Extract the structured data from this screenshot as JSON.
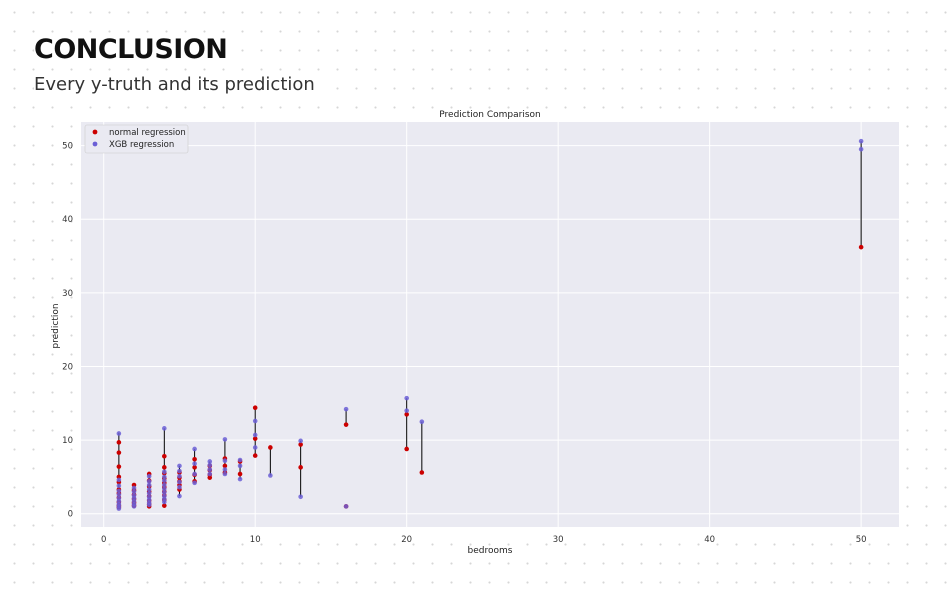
{
  "slide": {
    "title": "CONCLUSION",
    "subtitle": "Every y-truth and its prediction"
  },
  "chart_data": {
    "type": "scatter",
    "title": "Prediction Comparison",
    "xlabel": "bedrooms",
    "ylabel": "prediction",
    "xlim": [
      -1.5,
      52.5
    ],
    "ylim": [
      -1.8,
      53.2
    ],
    "xticks": [
      "0",
      "10",
      "20",
      "30",
      "40",
      "50"
    ],
    "yticks": [
      "0",
      "10",
      "20",
      "30",
      "40",
      "50"
    ],
    "grid": true,
    "legend_position": "top-left",
    "colors": {
      "plot_bg": "#eaeaf2",
      "grid": "#ffffff",
      "normal": "#cc0000",
      "xgb": "#6b5fd6",
      "connector": "#000000"
    },
    "series": [
      {
        "name": "normal regression",
        "points": [
          [
            1,
            9.7
          ],
          [
            1,
            8.3
          ],
          [
            1,
            6.4
          ],
          [
            1,
            5.0
          ],
          [
            1,
            4.3
          ],
          [
            1,
            3.3
          ],
          [
            1,
            2.8
          ],
          [
            1,
            2.2
          ],
          [
            1,
            1.6
          ],
          [
            1,
            1.1
          ],
          [
            1,
            0.9
          ],
          [
            2,
            3.9
          ],
          [
            2,
            3.2
          ],
          [
            2,
            2.6
          ],
          [
            2,
            2.0
          ],
          [
            2,
            1.5
          ],
          [
            2,
            1.1
          ],
          [
            3,
            5.4
          ],
          [
            3,
            4.5
          ],
          [
            3,
            3.7
          ],
          [
            3,
            3.0
          ],
          [
            3,
            2.4
          ],
          [
            3,
            1.8
          ],
          [
            3,
            1.3
          ],
          [
            3,
            1.0
          ],
          [
            4,
            7.8
          ],
          [
            4,
            6.3
          ],
          [
            4,
            5.5
          ],
          [
            4,
            4.8
          ],
          [
            4,
            4.2
          ],
          [
            4,
            3.6
          ],
          [
            4,
            3.0
          ],
          [
            4,
            2.5
          ],
          [
            4,
            1.9
          ],
          [
            4,
            1.1
          ],
          [
            5,
            5.6
          ],
          [
            5,
            4.9
          ],
          [
            5,
            4.4
          ],
          [
            5,
            3.9
          ],
          [
            5,
            3.3
          ],
          [
            6,
            7.4
          ],
          [
            6,
            6.3
          ],
          [
            6,
            5.3
          ],
          [
            6,
            4.4
          ],
          [
            7,
            6.5
          ],
          [
            7,
            5.9
          ],
          [
            7,
            5.3
          ],
          [
            7,
            4.9
          ],
          [
            8,
            7.5
          ],
          [
            8,
            6.5
          ],
          [
            8,
            5.6
          ],
          [
            9,
            7.1
          ],
          [
            9,
            5.4
          ],
          [
            10,
            14.4
          ],
          [
            10,
            10.2
          ],
          [
            10,
            7.9
          ],
          [
            11,
            9.0
          ],
          [
            13,
            9.4
          ],
          [
            13,
            6.3
          ],
          [
            16,
            12.1
          ],
          [
            16,
            1.0
          ],
          [
            20,
            13.5
          ],
          [
            20,
            8.8
          ],
          [
            21,
            5.6
          ],
          [
            50,
            36.2
          ]
        ]
      },
      {
        "name": "XGB regression",
        "points": [
          [
            1,
            10.9
          ],
          [
            1,
            4.6
          ],
          [
            1,
            3.8
          ],
          [
            1,
            3.1
          ],
          [
            1,
            2.6
          ],
          [
            1,
            2.1
          ],
          [
            1,
            1.7
          ],
          [
            1,
            1.3
          ],
          [
            1,
            1.0
          ],
          [
            1,
            0.7
          ],
          [
            2,
            3.5
          ],
          [
            2,
            3.0
          ],
          [
            2,
            2.5
          ],
          [
            2,
            2.1
          ],
          [
            2,
            1.7
          ],
          [
            2,
            1.3
          ],
          [
            2,
            1.0
          ],
          [
            3,
            5.1
          ],
          [
            3,
            4.4
          ],
          [
            3,
            3.9
          ],
          [
            3,
            3.3
          ],
          [
            3,
            2.8
          ],
          [
            3,
            2.3
          ],
          [
            3,
            1.9
          ],
          [
            3,
            1.5
          ],
          [
            3,
            1.2
          ],
          [
            4,
            11.6
          ],
          [
            4,
            5.7
          ],
          [
            4,
            5.0
          ],
          [
            4,
            4.5
          ],
          [
            4,
            3.9
          ],
          [
            4,
            3.4
          ],
          [
            4,
            2.9
          ],
          [
            4,
            2.4
          ],
          [
            4,
            2.0
          ],
          [
            4,
            1.6
          ],
          [
            5,
            6.5
          ],
          [
            5,
            5.8
          ],
          [
            5,
            5.1
          ],
          [
            5,
            4.3
          ],
          [
            5,
            3.6
          ],
          [
            5,
            2.4
          ],
          [
            6,
            8.8
          ],
          [
            6,
            6.8
          ],
          [
            6,
            5.4
          ],
          [
            6,
            4.2
          ],
          [
            7,
            7.1
          ],
          [
            7,
            6.6
          ],
          [
            7,
            6.0
          ],
          [
            7,
            5.4
          ],
          [
            8,
            10.1
          ],
          [
            8,
            7.2
          ],
          [
            8,
            6.0
          ],
          [
            8,
            5.4
          ],
          [
            9,
            7.3
          ],
          [
            9,
            6.5
          ],
          [
            9,
            4.7
          ],
          [
            10,
            12.6
          ],
          [
            10,
            10.7
          ],
          [
            10,
            9.0
          ],
          [
            11,
            5.2
          ],
          [
            13,
            9.9
          ],
          [
            13,
            2.3
          ],
          [
            16,
            14.2
          ],
          [
            16,
            1.0
          ],
          [
            20,
            15.7
          ],
          [
            20,
            14.0
          ],
          [
            21,
            12.5
          ],
          [
            50,
            50.6
          ],
          [
            50,
            49.5
          ]
        ]
      }
    ],
    "connectors": [
      [
        1,
        2.0,
        11.0
      ],
      [
        2,
        1.0,
        3.9
      ],
      [
        3,
        1.0,
        5.4
      ],
      [
        4,
        1.1,
        11.6
      ],
      [
        5,
        2.4,
        6.5
      ],
      [
        6,
        4.2,
        8.8
      ],
      [
        7,
        4.9,
        7.1
      ],
      [
        8,
        5.4,
        10.1
      ],
      [
        9,
        4.7,
        7.3
      ],
      [
        10,
        7.9,
        14.4
      ],
      [
        11,
        5.2,
        9.0
      ],
      [
        13,
        2.3,
        9.9
      ],
      [
        16,
        12.1,
        14.2
      ],
      [
        20,
        8.8,
        15.7
      ],
      [
        21,
        5.6,
        12.5
      ],
      [
        50,
        36.2,
        50.6
      ]
    ]
  }
}
